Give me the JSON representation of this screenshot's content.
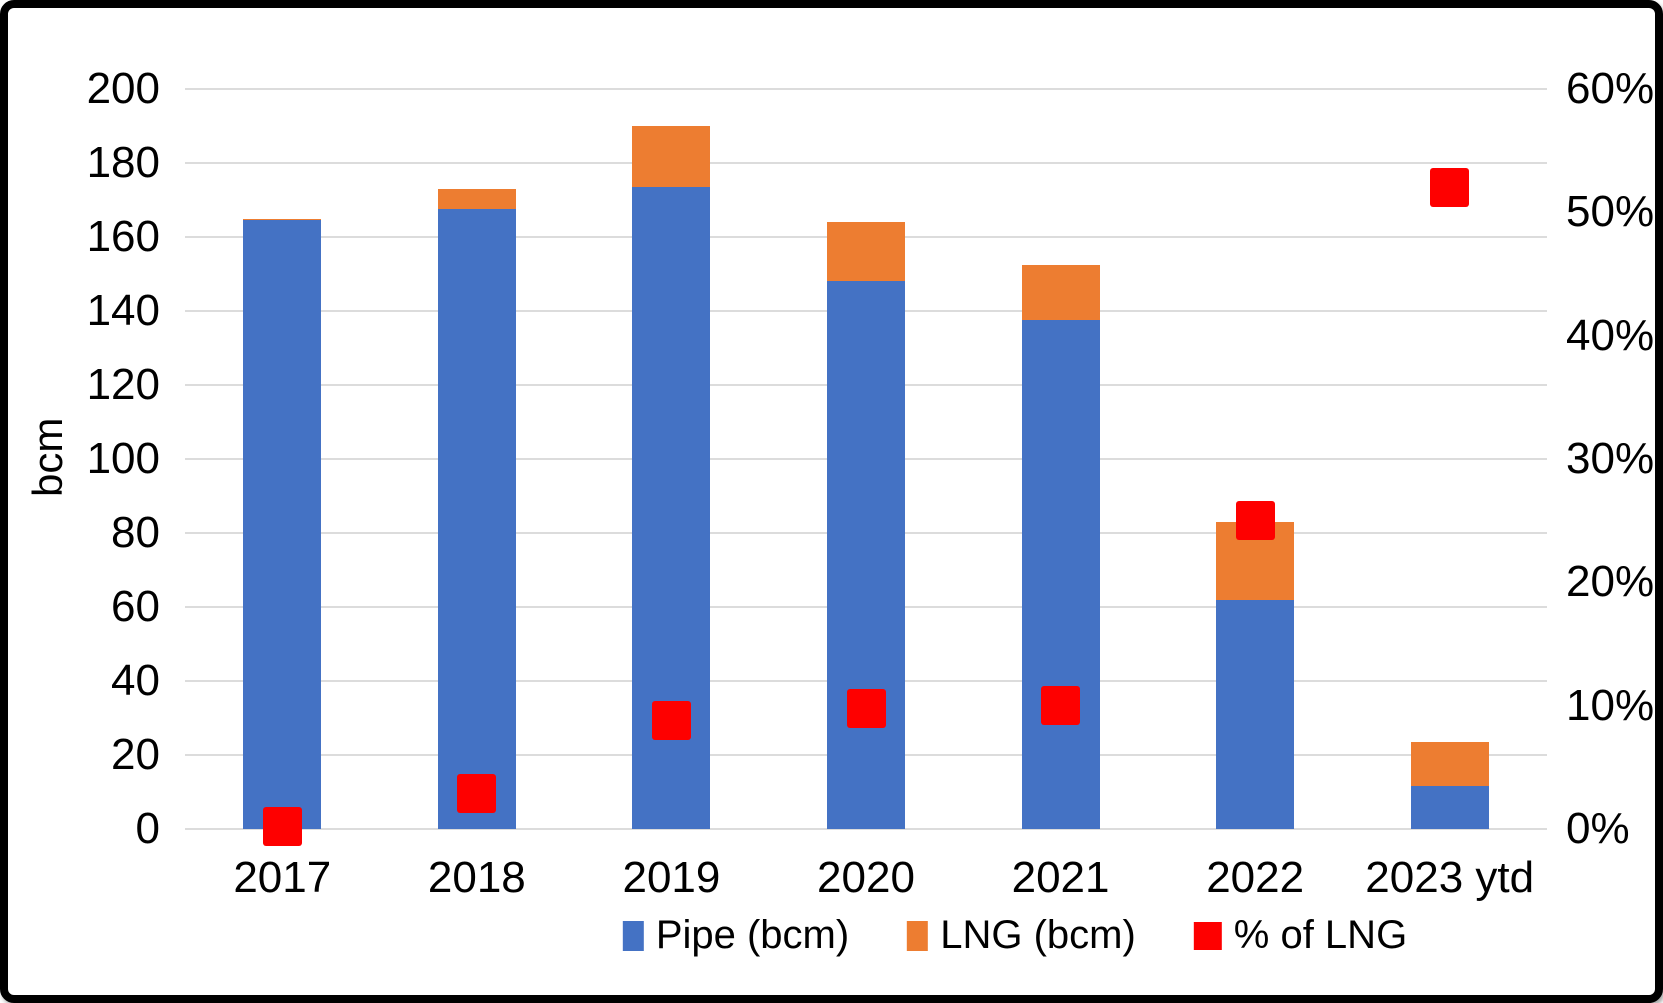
{
  "chart_data": {
    "type": "bar",
    "subtype": "stacked-bar-with-secondary-axis-points",
    "title": "",
    "categories": [
      "2017",
      "2018",
      "2019",
      "2020",
      "2021",
      "2022",
      "2023 ytd"
    ],
    "series": [
      {
        "name": "Pipe (bcm)",
        "type": "stacked-bar",
        "axis": "left",
        "color": "#4472C4",
        "values": [
          164.5,
          167.5,
          173.5,
          148,
          137.5,
          62,
          11.5
        ]
      },
      {
        "name": "LNG (bcm)",
        "type": "stacked-bar",
        "axis": "left",
        "color": "#ED7D31",
        "values": [
          0.5,
          5.5,
          16.5,
          16,
          15,
          21,
          12
        ]
      },
      {
        "name": "% of LNG",
        "type": "point",
        "marker": "square",
        "axis": "right",
        "color": "#FE0000",
        "values": [
          0.2,
          2.9,
          8.8,
          9.8,
          10,
          25,
          52
        ]
      }
    ],
    "left_axis": {
      "title": "bcm",
      "min": 0,
      "max": 200,
      "tick_step": 20,
      "tick_values": [
        0,
        20,
        40,
        60,
        80,
        100,
        120,
        140,
        160,
        180,
        200
      ],
      "tick_labels": [
        "0",
        "20",
        "40",
        "60",
        "80",
        "100",
        "120",
        "140",
        "160",
        "180",
        "200"
      ]
    },
    "right_axis": {
      "title": "",
      "min": 0,
      "max": 60,
      "tick_step": 10,
      "tick_values": [
        0,
        10,
        20,
        30,
        40,
        50,
        60
      ],
      "tick_labels": [
        "0%",
        "10%",
        "20%",
        "30%",
        "40%",
        "50%",
        "60%"
      ]
    },
    "grid": true,
    "gridline_color": "#dcdcdc",
    "background_color": "#ffffff",
    "border_color": "#000000",
    "legend_position": "bottom",
    "legend": [
      {
        "label": "Pipe (bcm)",
        "color": "#4472C4"
      },
      {
        "label": "LNG (bcm)",
        "color": "#ED7D31"
      },
      {
        "label": "% of LNG",
        "color": "#FE0000"
      }
    ]
  }
}
